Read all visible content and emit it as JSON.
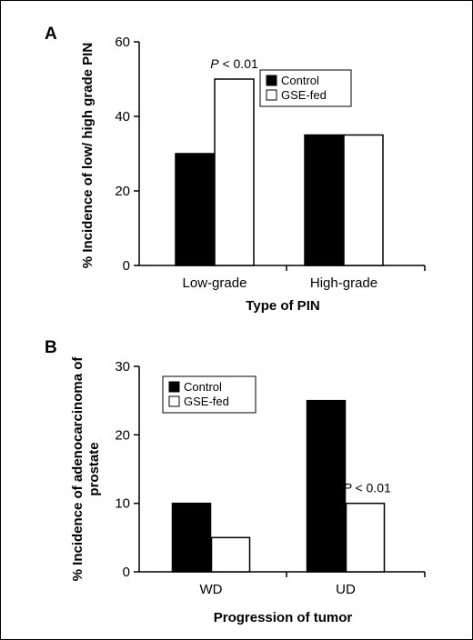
{
  "chart_data": [
    {
      "panel": "A",
      "type": "bar",
      "categories": [
        "Low-grade",
        "High-grade"
      ],
      "series": [
        {
          "name": "Control",
          "values": [
            30,
            35
          ]
        },
        {
          "name": "GSE-fed",
          "values": [
            50,
            35
          ]
        }
      ],
      "xlabel": "Type of PIN",
      "ylabel": "% Incidence of low/ high grade  PIN",
      "ylim": [
        0,
        60
      ],
      "yticks": [
        0,
        20,
        40,
        60
      ],
      "legend_position": "top-right",
      "grid": false,
      "annotation": {
        "p_prefix": "P",
        "p_suffix": " < 0.01",
        "category": "Low-grade",
        "series": "GSE-fed"
      },
      "colors": {
        "Control": "#000000",
        "GSE-fed": "#ffffff"
      }
    },
    {
      "panel": "B",
      "type": "bar",
      "categories": [
        "WD",
        "UD"
      ],
      "series": [
        {
          "name": "Control",
          "values": [
            10,
            25
          ]
        },
        {
          "name": "GSE-fed",
          "values": [
            5,
            10
          ]
        }
      ],
      "xlabel": "Progression of tumor",
      "ylabel_line1": "% Incidence of adenocarcinoma of",
      "ylabel_line2": "prostate",
      "ylim": [
        0,
        30
      ],
      "yticks": [
        0,
        10,
        20,
        30
      ],
      "legend_position": "top-left",
      "grid": false,
      "annotation": {
        "p_prefix": "P",
        "p_suffix": " < 0.01",
        "category": "UD",
        "series": "GSE-fed"
      },
      "colors": {
        "Control": "#000000",
        "GSE-fed": "#ffffff"
      }
    }
  ]
}
